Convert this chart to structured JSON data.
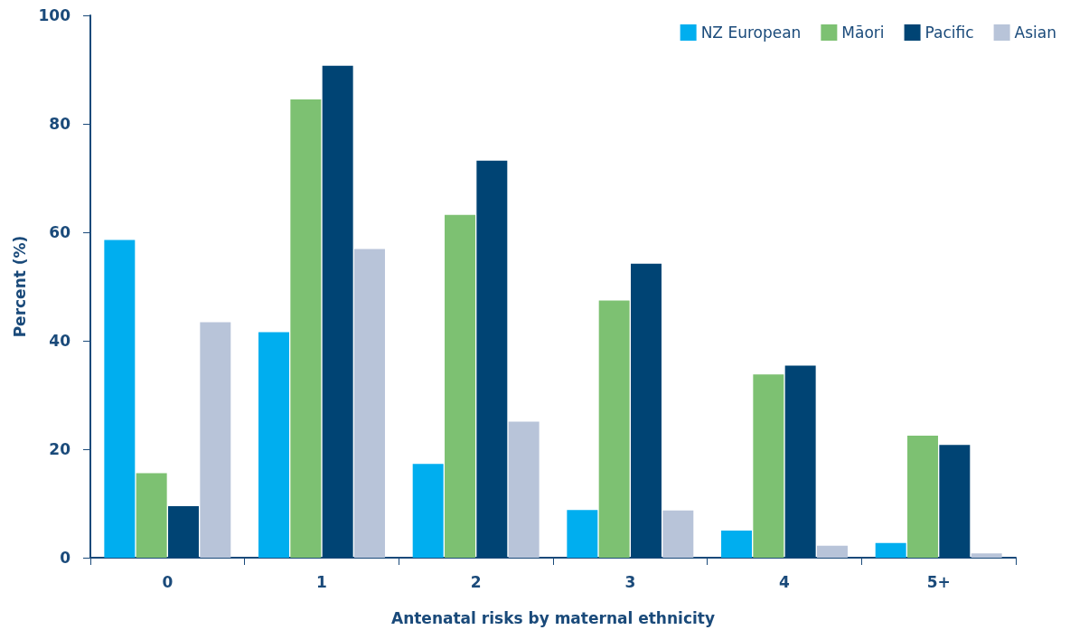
{
  "chart_data": {
    "type": "bar",
    "xlabel": "Antenatal risks by maternal ethnicity",
    "ylabel": "Percent (%)",
    "categories": [
      "0",
      "1",
      "2",
      "3",
      "4",
      "5+"
    ],
    "series": [
      {
        "name": "NZ European",
        "color": "#00aeef",
        "values": [
          58.6,
          41.6,
          17.3,
          8.8,
          5.0,
          2.7
        ]
      },
      {
        "name": "Māori",
        "color": "#7dc172",
        "values": [
          15.6,
          84.5,
          63.2,
          47.4,
          33.8,
          22.5
        ]
      },
      {
        "name": "Pacific",
        "color": "#004474",
        "values": [
          9.5,
          90.7,
          73.2,
          54.2,
          35.4,
          20.8
        ]
      },
      {
        "name": "Asian",
        "color": "#b8c4d9",
        "values": [
          43.4,
          56.9,
          25.1,
          8.7,
          2.2,
          0.8
        ]
      }
    ],
    "ylim": [
      0,
      100
    ],
    "yticks": [
      0,
      20,
      40,
      60,
      80,
      100
    ],
    "grid": false,
    "legend": "top right"
  }
}
